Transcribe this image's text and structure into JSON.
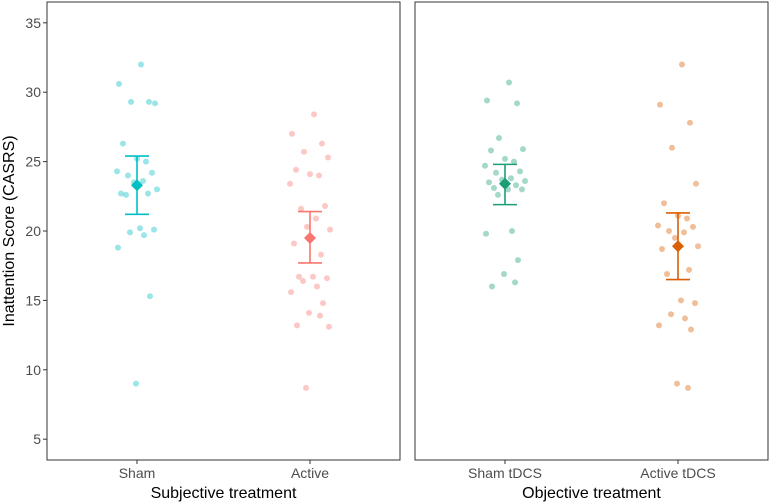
{
  "chart_data": {
    "type": "scatter",
    "ylabel": "Inattention Score (CASRS)",
    "ylim": [
      3.5,
      36.5
    ],
    "yticks": [
      5,
      10,
      15,
      20,
      25,
      30,
      35
    ],
    "panels": [
      {
        "xlabel": "Subjective treatment",
        "groups": [
          {
            "name": "Sham",
            "color": "#00BFC4",
            "mean": 23.3,
            "ci": [
              21.2,
              25.4
            ],
            "points": [
              32.0,
              30.6,
              29.3,
              29.3,
              29.2,
              26.3,
              25.2,
              25.0,
              24.3,
              24.2,
              24.0,
              23.6,
              23.5,
              23.0,
              22.7,
              22.7,
              22.6,
              20.2,
              20.1,
              19.9,
              19.7,
              18.8,
              15.3,
              9.0
            ]
          },
          {
            "name": "Active",
            "color": "#F8766D",
            "mean": 19.5,
            "ci": [
              17.7,
              21.4
            ],
            "points": [
              28.4,
              27.0,
              26.3,
              25.7,
              25.3,
              24.4,
              24.1,
              24.0,
              23.4,
              21.8,
              21.6,
              20.9,
              20.3,
              20.1,
              19.1,
              18.3,
              16.7,
              16.7,
              16.6,
              16.4,
              16.0,
              15.6,
              14.8,
              14.1,
              13.9,
              13.2,
              13.1,
              8.7
            ]
          }
        ]
      },
      {
        "xlabel": "Objective treatment",
        "groups": [
          {
            "name": "Sham tDCS",
            "color": "#1B9E77",
            "mean": 23.4,
            "ci": [
              21.9,
              24.8
            ],
            "points": [
              30.7,
              29.4,
              29.2,
              26.7,
              25.9,
              25.8,
              25.2,
              25.0,
              24.7,
              24.3,
              24.2,
              23.8,
              23.7,
              23.6,
              23.5,
              23.3,
              23.1,
              23.0,
              23.0,
              22.6,
              20.0,
              19.8,
              17.9,
              16.9,
              16.3,
              16.0
            ]
          },
          {
            "name": "Active tDCS",
            "color": "#D95F02",
            "mean": 18.9,
            "ci": [
              16.5,
              21.3
            ],
            "points": [
              32.0,
              29.1,
              27.8,
              26.0,
              23.4,
              22.0,
              21.1,
              20.9,
              20.4,
              20.3,
              20.0,
              19.9,
              19.5,
              18.9,
              18.7,
              17.2,
              16.9,
              15.0,
              14.8,
              14.0,
              13.7,
              13.2,
              12.9,
              9.0,
              8.7
            ]
          }
        ]
      }
    ]
  }
}
